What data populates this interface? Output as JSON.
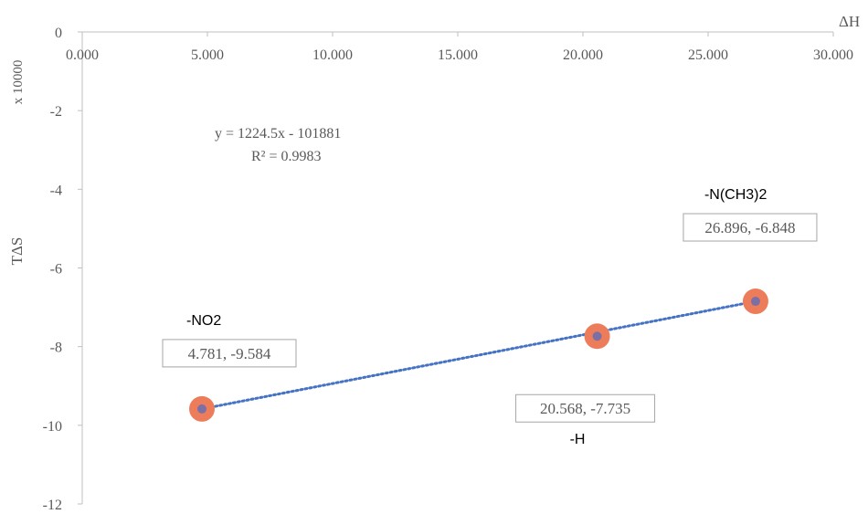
{
  "chart_data": {
    "type": "scatter",
    "xlabel": "ΔH",
    "ylabel": "TΔS",
    "y_multiplier_label": "x 10000",
    "xlim": [
      0,
      30
    ],
    "ylim": [
      -12,
      0
    ],
    "x_ticks": [
      "0.000",
      "5.000",
      "10.000",
      "15.000",
      "20.000",
      "25.000",
      "30.000"
    ],
    "x_tick_values": [
      0,
      5,
      10,
      15,
      20,
      25,
      30
    ],
    "y_ticks": [
      "0",
      "-2",
      "-4",
      "-6",
      "-8",
      "-10",
      "-12"
    ],
    "y_tick_values": [
      0,
      -2,
      -4,
      -6,
      -8,
      -10,
      -12
    ],
    "grid": false,
    "series": [
      {
        "points": [
          {
            "x": 4.781,
            "y": -9.584,
            "value_label": "4.781, -9.584",
            "name_label": "-NO2"
          },
          {
            "x": 20.568,
            "y": -7.735,
            "value_label": "20.568, -7.735",
            "name_label": "-H"
          },
          {
            "x": 26.896,
            "y": -6.848,
            "value_label": "26.896, -6.848",
            "name_label": "-N(CH3)2"
          }
        ]
      }
    ],
    "trendline": {
      "type": "linear",
      "style": "dotted",
      "equation": "y = 1224.5x - 101881",
      "r_squared": "R² = 0.9983",
      "x_range": [
        4.781,
        26.896
      ],
      "y_range": [
        -9.584,
        -6.848
      ]
    },
    "colors": {
      "marker_outer": "#ED7D5A",
      "marker_inner": "#7B6FA5",
      "trendline": "#4472C4",
      "axis": "#BFBFBF",
      "text": "#595959",
      "label_box": "#A6A6A6"
    }
  }
}
